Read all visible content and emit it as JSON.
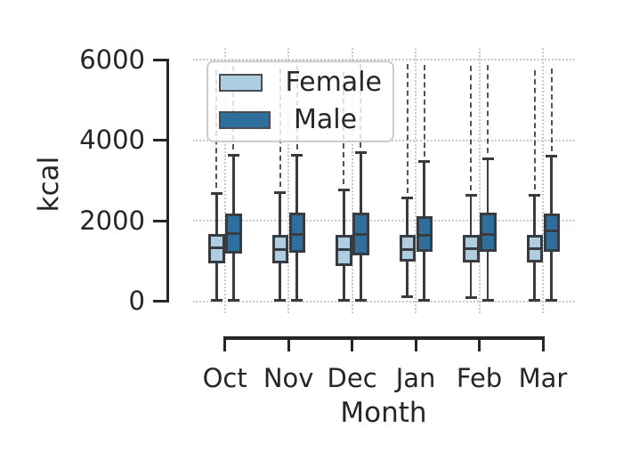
{
  "figure": {
    "ylabel": "kcal",
    "xlabel": "Month",
    "background": "#ffffff",
    "text_color": "#262626",
    "grid_color": "#c9c9c9",
    "line_color": "#383b40"
  },
  "legend": {
    "entries": [
      {
        "label": "Female",
        "color": "#aecde0"
      },
      {
        "label": "Male",
        "color": "#2e6f9e"
      }
    ]
  },
  "chart_data": {
    "type": "boxplot",
    "title": "",
    "xlabel": "Month",
    "ylabel": "kcal",
    "categories": [
      "Oct",
      "Nov",
      "Dec",
      "Jan",
      "Feb",
      "Mar"
    ],
    "yticks": [
      0,
      2000,
      4000,
      6000
    ],
    "ylim": [
      0,
      6000
    ],
    "grid": "dotted",
    "legend_position": "upper left",
    "series": [
      {
        "name": "Female",
        "color": "#aecde0",
        "boxes": [
          {
            "category": "Oct",
            "whisker_low": 20,
            "q1": 950,
            "median": 1330,
            "q3": 1665,
            "whisker_high": 2680,
            "fliers_max": 5750
          },
          {
            "category": "Nov",
            "whisker_low": 20,
            "q1": 940,
            "median": 1295,
            "q3": 1645,
            "whisker_high": 2710,
            "fliers_max": 5800
          },
          {
            "category": "Dec",
            "whisker_low": 20,
            "q1": 875,
            "median": 1280,
            "q3": 1645,
            "whisker_high": 2770,
            "fliers_max": 5700
          },
          {
            "category": "Jan",
            "whisker_low": 120,
            "q1": 985,
            "median": 1295,
            "q3": 1645,
            "whisker_high": 2565,
            "fliers_max": 5900
          },
          {
            "category": "Feb",
            "whisker_low": 90,
            "q1": 965,
            "median": 1310,
            "q3": 1645,
            "whisker_high": 2625,
            "fliers_max": 5850
          },
          {
            "category": "Mar",
            "whisker_low": 20,
            "q1": 965,
            "median": 1310,
            "q3": 1650,
            "whisker_high": 2640,
            "fliers_max": 5750
          }
        ]
      },
      {
        "name": "Male",
        "color": "#2e6f9e",
        "boxes": [
          {
            "category": "Oct",
            "whisker_low": 20,
            "q1": 1185,
            "median": 1690,
            "q3": 2180,
            "whisker_high": 3640,
            "fliers_max": 5850
          },
          {
            "category": "Nov",
            "whisker_low": 20,
            "q1": 1200,
            "median": 1665,
            "q3": 2195,
            "whisker_high": 3640,
            "fliers_max": 5850
          },
          {
            "category": "Dec",
            "whisker_low": 20,
            "q1": 1145,
            "median": 1665,
            "q3": 2195,
            "whisker_high": 3690,
            "fliers_max": 5900
          },
          {
            "category": "Jan",
            "whisker_low": 30,
            "q1": 1225,
            "median": 1630,
            "q3": 2120,
            "whisker_high": 3475,
            "fliers_max": 5870
          },
          {
            "category": "Feb",
            "whisker_low": 30,
            "q1": 1235,
            "median": 1665,
            "q3": 2195,
            "whisker_high": 3550,
            "fliers_max": 5870
          },
          {
            "category": "Mar",
            "whisker_low": 20,
            "q1": 1235,
            "median": 1740,
            "q3": 2180,
            "whisker_high": 3600,
            "fliers_max": 5800
          }
        ]
      }
    ]
  }
}
